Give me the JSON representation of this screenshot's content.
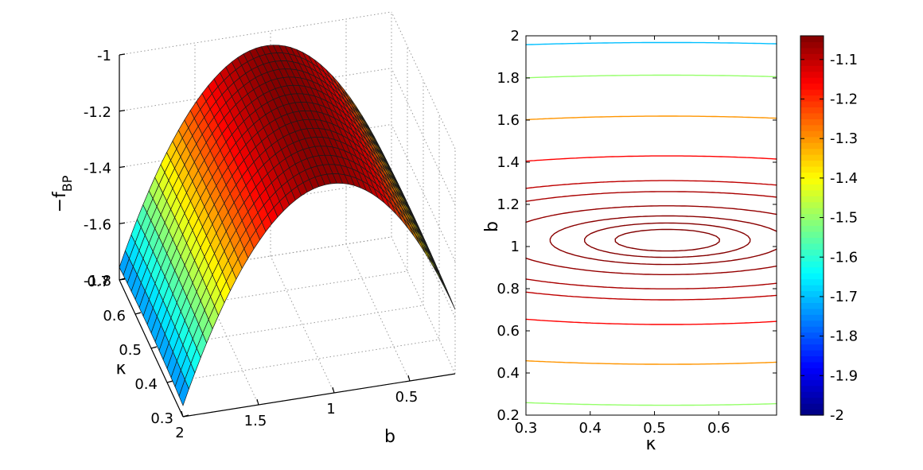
{
  "chart_data": [
    {
      "type": "surface",
      "xlabel": "b",
      "ylabel": "κ",
      "zlabel": "−f",
      "zlabel_subscript": "BP",
      "xlim": [
        0.2,
        2
      ],
      "ylim": [
        0.3,
        0.7
      ],
      "zlim": [
        -1.8,
        -1
      ],
      "z_ticks": [
        -1.8,
        -1.6,
        -1.4,
        -1.2,
        -1
      ],
      "z_tick_labels": [
        "-1.8",
        "-1.6",
        "-1.4",
        "-1.2",
        "-1"
      ],
      "kappa_ticks": [
        0.3,
        0.4,
        0.5,
        0.6,
        0.7
      ],
      "kappa_tick_labels": [
        "0.3",
        "0.4",
        "0.5",
        "0.6",
        "0.7"
      ],
      "b_ticks": [
        2,
        1.5,
        1,
        0.5
      ],
      "b_tick_labels": [
        "2",
        "1.5",
        "1",
        "0.5"
      ],
      "peak": {
        "kappa": 0.52,
        "b": 1.03,
        "value": -1.04
      },
      "grid": true,
      "colormap": "jet"
    },
    {
      "type": "contour",
      "xlabel": "κ",
      "ylabel": "b",
      "xlim": [
        0.3,
        0.69
      ],
      "ylim": [
        0.2,
        2
      ],
      "x_ticks": [
        0.3,
        0.4,
        0.5,
        0.6
      ],
      "x_tick_labels": [
        "0.3",
        "0.4",
        "0.5",
        "0.6"
      ],
      "y_ticks": [
        0.2,
        0.4,
        0.6,
        0.8,
        1,
        1.2,
        1.4,
        1.6,
        1.8,
        2
      ],
      "y_tick_labels": [
        "0.2",
        "0.4",
        "0.6",
        "0.8",
        "1",
        "1.2",
        "1.4",
        "1.6",
        "1.8",
        "2"
      ],
      "levels": [
        -1.9,
        -1.7,
        -1.5,
        -1.3,
        -1.16,
        -1.1,
        -1.08,
        -1.06,
        -1.05,
        -1.045,
        -1.042
      ],
      "peak": {
        "kappa": 0.52,
        "b": 1.03,
        "value": -1.04
      },
      "colorbar": {
        "min": -2,
        "max": -1.04,
        "ticks": [
          -1.1,
          -1.2,
          -1.3,
          -1.4,
          -1.5,
          -1.6,
          -1.7,
          -1.8,
          -1.9,
          -2
        ],
        "tick_labels": [
          "-1.1",
          "-1.2",
          "-1.3",
          "-1.4",
          "-1.5",
          "-1.6",
          "-1.7",
          "-1.8",
          "-1.9",
          "-2"
        ],
        "position": "right",
        "colormap": "jet"
      }
    }
  ]
}
